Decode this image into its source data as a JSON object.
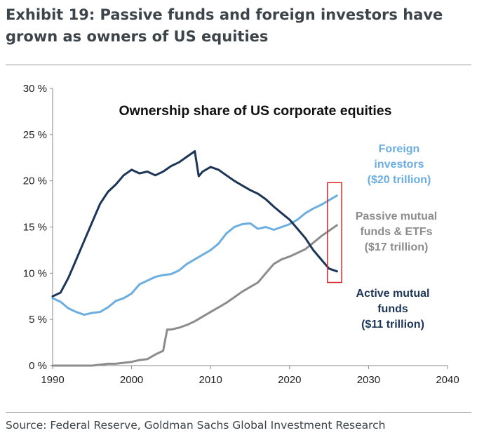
{
  "header": {
    "title": "Exhibit 19: Passive funds and foreign investors have grown as owners of US equities",
    "source": "Source: Federal Reserve, Goldman Sachs Global Investment Research"
  },
  "chart_data": {
    "type": "line",
    "title": "Ownership share of US corporate equities",
    "xlabel": "",
    "ylabel": "",
    "xlim": [
      1990,
      2040
    ],
    "ylim": [
      0,
      30
    ],
    "x_ticks": [
      "1990",
      "2000",
      "2010",
      "2020",
      "2030",
      "2040"
    ],
    "y_ticks": [
      "0 %",
      "5 %",
      "10 %",
      "15 %",
      "20 %",
      "25 %",
      "30 %"
    ],
    "grid": false,
    "highlight_box": {
      "x": [
        2024.8,
        2026.6
      ],
      "y": [
        9.0,
        19.8
      ],
      "color": "#d9262b"
    },
    "series": [
      {
        "key": "foreign",
        "label_lines": [
          "Foreign",
          "investors",
          "($20 trillion)"
        ],
        "color": "#6caee0",
        "x": [
          1990,
          1991,
          1992,
          1993,
          1994,
          1995,
          1996,
          1997,
          1998,
          1999,
          2000,
          2001,
          2002,
          2003,
          2004,
          2005,
          2006,
          2007,
          2008,
          2009,
          2010,
          2011,
          2012,
          2013,
          2014,
          2015,
          2016,
          2017,
          2018,
          2019,
          2020,
          2021,
          2022,
          2023,
          2024,
          2025,
          2026
        ],
        "values": [
          7.3,
          6.9,
          6.2,
          5.8,
          5.5,
          5.7,
          5.8,
          6.3,
          7.0,
          7.3,
          7.8,
          8.8,
          9.2,
          9.6,
          9.8,
          9.9,
          10.3,
          11.0,
          11.5,
          12.0,
          12.5,
          13.2,
          14.3,
          15.0,
          15.3,
          15.4,
          14.8,
          15.0,
          14.7,
          15.0,
          15.3,
          15.8,
          16.5,
          17.0,
          17.4,
          17.9,
          18.4
        ]
      },
      {
        "key": "passive",
        "label_lines": [
          "Passive mutual",
          "funds & ETFs",
          "($17 trillion)"
        ],
        "color": "#8c8c8c",
        "x": [
          1990,
          1991,
          1992,
          1993,
          1994,
          1995,
          1996,
          1997,
          1998,
          1999,
          2000,
          2001,
          2002,
          2003,
          2004,
          2004.5,
          2005,
          2006,
          2007,
          2008,
          2009,
          2010,
          2011,
          2012,
          2013,
          2014,
          2015,
          2016,
          2017,
          2018,
          2019,
          2020,
          2021,
          2022,
          2023,
          2024,
          2025,
          2026
        ],
        "values": [
          0.0,
          0.0,
          0.0,
          0.0,
          0.0,
          0.0,
          0.1,
          0.2,
          0.2,
          0.3,
          0.4,
          0.6,
          0.7,
          1.2,
          1.6,
          3.9,
          3.9,
          4.1,
          4.4,
          4.8,
          5.3,
          5.8,
          6.3,
          6.8,
          7.4,
          8.0,
          8.5,
          9.0,
          10.0,
          11.0,
          11.5,
          11.8,
          12.2,
          12.6,
          13.3,
          14.0,
          14.6,
          15.2
        ]
      },
      {
        "key": "active",
        "label_lines": [
          "Active mutual",
          "funds",
          "($11 trillion)"
        ],
        "color": "#1d3557",
        "x": [
          1990,
          1991,
          1992,
          1993,
          1994,
          1995,
          1996,
          1997,
          1998,
          1999,
          2000,
          2001,
          2002,
          2003,
          2004,
          2005,
          2006,
          2007,
          2008,
          2008.5,
          2009,
          2010,
          2011,
          2012,
          2013,
          2014,
          2015,
          2016,
          2017,
          2018,
          2019,
          2020,
          2021,
          2022,
          2023,
          2024,
          2025,
          2026
        ],
        "values": [
          7.5,
          7.9,
          9.5,
          11.5,
          13.5,
          15.5,
          17.5,
          18.8,
          19.6,
          20.6,
          21.2,
          20.8,
          21.0,
          20.6,
          21.0,
          21.6,
          22.0,
          22.6,
          23.2,
          20.5,
          21.0,
          21.5,
          21.2,
          20.6,
          20.0,
          19.5,
          19.0,
          18.6,
          18.0,
          17.2,
          16.5,
          15.8,
          14.8,
          13.8,
          12.5,
          11.5,
          10.5,
          10.2
        ]
      }
    ]
  }
}
